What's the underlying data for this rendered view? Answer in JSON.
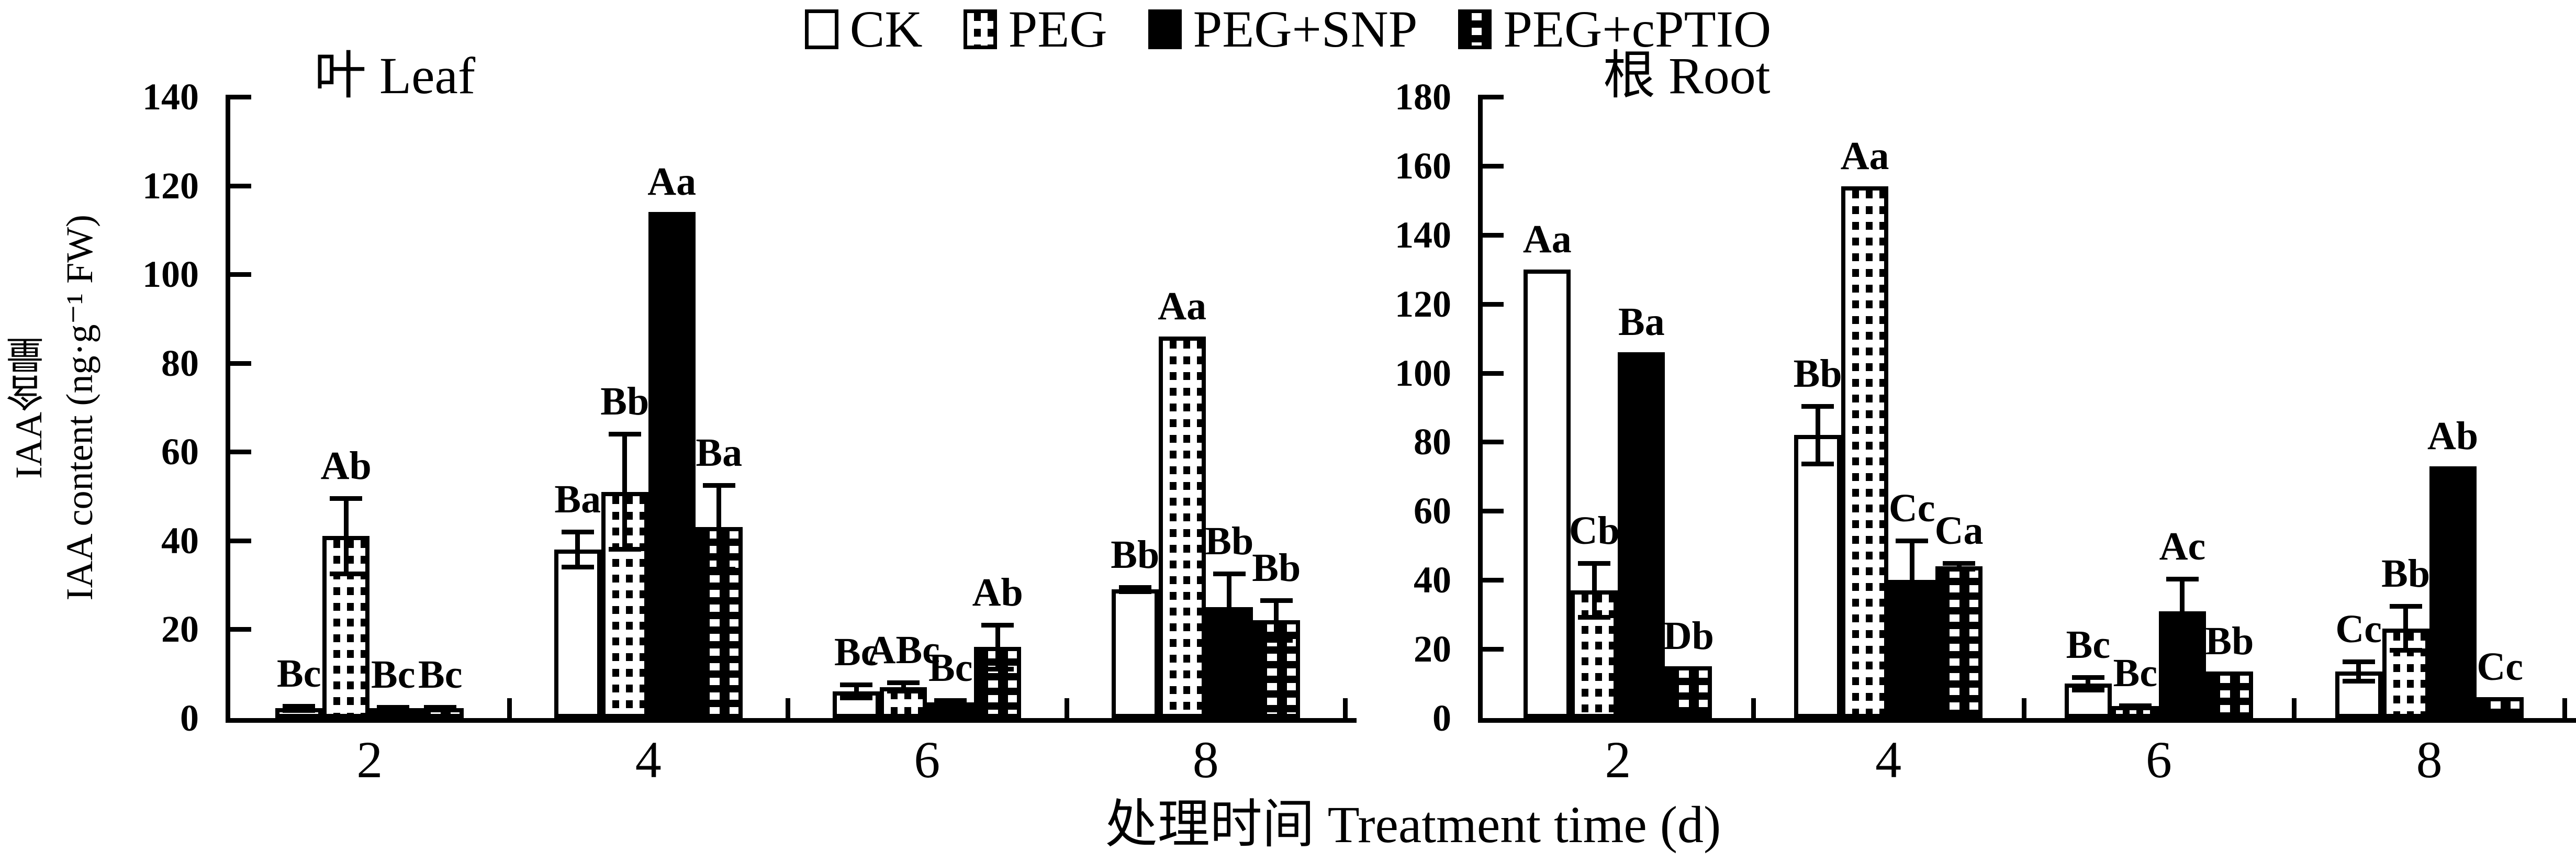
{
  "colors": {
    "ink": "#000000",
    "paper": "#ffffff"
  },
  "legend": {
    "items": [
      {
        "label": "CK",
        "pattern": "open"
      },
      {
        "label": "PEG",
        "pattern": "dots"
      },
      {
        "label": "PEG+SNP",
        "pattern": "solid"
      },
      {
        "label": "PEG+cPTIO",
        "pattern": "checker"
      }
    ]
  },
  "xlabel": "处理时间 Treatment time (d)",
  "chart_data": [
    {
      "type": "bar",
      "title": "叶 Leaf",
      "ylabel_lines": [
        "IAA含量",
        "IAA content (ng·g⁻¹ FW)"
      ],
      "ylim": [
        0,
        140
      ],
      "yticks": [
        0,
        20,
        40,
        60,
        80,
        100,
        120,
        140
      ],
      "categories": [
        "2",
        "4",
        "6",
        "8"
      ],
      "legend_position": "top-center",
      "grid": false,
      "series": [
        {
          "name": "CK",
          "pattern": "open",
          "values": [
            2.2,
            38,
            6,
            29
          ],
          "errors": [
            1,
            4.5,
            2,
            1
          ],
          "labels": [
            "Bc",
            "Ba",
            "Bc",
            "Bb"
          ]
        },
        {
          "name": "PEG",
          "pattern": "dots",
          "values": [
            41,
            51,
            7,
            86
          ],
          "errors": [
            9,
            13.5,
            1.5,
            0
          ],
          "labels": [
            "Ab",
            "Bb",
            "ABc",
            "Aa"
          ]
        },
        {
          "name": "PEG+SNP",
          "pattern": "solid",
          "values": [
            2.2,
            114,
            3.5,
            25
          ],
          "errors": [
            0.8,
            0,
            1,
            8
          ],
          "labels": [
            "Bc",
            "Aa",
            "Bc",
            "Bb"
          ]
        },
        {
          "name": "PEG+cPTIO",
          "pattern": "checker",
          "values": [
            2.2,
            43,
            16,
            22
          ],
          "errors": [
            0.8,
            10,
            5.5,
            5
          ],
          "labels": [
            "Bc",
            "Ba",
            "Ab",
            "Bb"
          ]
        }
      ]
    },
    {
      "type": "bar",
      "title": "根 Root",
      "ylabel_lines": [],
      "ylim": [
        0,
        180
      ],
      "yticks": [
        0,
        20,
        40,
        60,
        80,
        100,
        120,
        140,
        160,
        180
      ],
      "categories": [
        "2",
        "4",
        "6",
        "8"
      ],
      "grid": false,
      "series": [
        {
          "name": "CK",
          "pattern": "open",
          "values": [
            130,
            82,
            10,
            13.5
          ],
          "errors": [
            0,
            9,
            2.5,
            3.5
          ],
          "labels": [
            "Aa",
            "Bb",
            "Bc",
            "Cc"
          ]
        },
        {
          "name": "PEG",
          "pattern": "dots",
          "values": [
            37,
            154,
            3.5,
            26
          ],
          "errors": [
            8.5,
            0,
            0.8,
            7
          ],
          "labels": [
            "Cb",
            "Aa",
            "Bc",
            "Bb"
          ]
        },
        {
          "name": "PEG+SNP",
          "pattern": "solid",
          "values": [
            106,
            40,
            31,
            73
          ],
          "errors": [
            0,
            12,
            10,
            0
          ],
          "labels": [
            "Ba",
            "Cc",
            "Ac",
            "Ab"
          ]
        },
        {
          "name": "PEG+cPTIO",
          "pattern": "checker",
          "values": [
            15,
            44,
            13.5,
            6
          ],
          "errors": [
            0,
            1.5,
            0,
            0
          ],
          "labels": [
            "Db",
            "Ca",
            "Bb",
            "Cc"
          ]
        }
      ]
    }
  ]
}
